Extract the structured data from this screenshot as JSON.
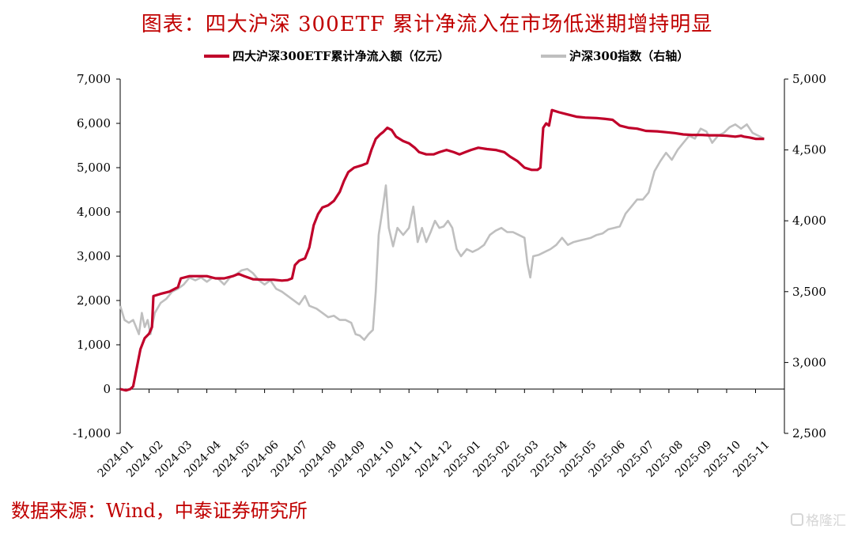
{
  "title": "图表：四大沪深 300ETF 累计净流入在市场低迷期增持明显",
  "source": "数据来源：Wind，中泰证券研究所",
  "watermark": "格隆汇",
  "chart_data": {
    "type": "line",
    "x": [
      "2024-01",
      "2024-02",
      "2024-03",
      "2024-04",
      "2024-05",
      "2024-06",
      "2024-07",
      "2024-08",
      "2024-09",
      "2024-10",
      "2024-11",
      "2024-12",
      "2025-01",
      "2025-02",
      "2025-03",
      "2025-04",
      "2025-05",
      "2025-06",
      "2025-07",
      "2025-08",
      "2025-09",
      "2025-10",
      "2025-11"
    ],
    "y_left": {
      "min": -1000,
      "max": 7000,
      "step": 1000,
      "ticks": [
        "-1,000",
        "0",
        "1,000",
        "2,000",
        "3,000",
        "4,000",
        "5,000",
        "6,000",
        "7,000"
      ]
    },
    "y_right": {
      "min": 2500,
      "max": 5000,
      "step": 500,
      "ticks": [
        "2,500",
        "3,000",
        "3,500",
        "4,000",
        "4,500",
        "5,000"
      ]
    },
    "legend_position": "top",
    "grid": false,
    "series": [
      {
        "name": "四大沪深300ETF累计净流入额（亿元）",
        "axis": "left",
        "color": "#c0002a",
        "points": [
          [
            0,
            0
          ],
          [
            0.2,
            -30
          ],
          [
            0.35,
            0
          ],
          [
            0.45,
            60
          ],
          [
            0.55,
            400
          ],
          [
            0.7,
            900
          ],
          [
            0.85,
            1150
          ],
          [
            1.0,
            1250
          ],
          [
            1.1,
            1400
          ],
          [
            1.15,
            2100
          ],
          [
            1.4,
            2150
          ],
          [
            1.7,
            2200
          ],
          [
            2.0,
            2300
          ],
          [
            2.1,
            2500
          ],
          [
            2.4,
            2550
          ],
          [
            2.7,
            2550
          ],
          [
            3.0,
            2550
          ],
          [
            3.3,
            2500
          ],
          [
            3.6,
            2500
          ],
          [
            3.9,
            2550
          ],
          [
            4.1,
            2600
          ],
          [
            4.3,
            2550
          ],
          [
            4.6,
            2480
          ],
          [
            5.0,
            2470
          ],
          [
            5.3,
            2470
          ],
          [
            5.6,
            2450
          ],
          [
            5.8,
            2460
          ],
          [
            5.95,
            2500
          ],
          [
            6.05,
            2800
          ],
          [
            6.2,
            2900
          ],
          [
            6.4,
            2950
          ],
          [
            6.55,
            3200
          ],
          [
            6.7,
            3700
          ],
          [
            6.85,
            3950
          ],
          [
            7.0,
            4100
          ],
          [
            7.2,
            4150
          ],
          [
            7.4,
            4250
          ],
          [
            7.6,
            4450
          ],
          [
            7.75,
            4700
          ],
          [
            7.9,
            4900
          ],
          [
            8.1,
            5000
          ],
          [
            8.35,
            5050
          ],
          [
            8.55,
            5100
          ],
          [
            8.7,
            5400
          ],
          [
            8.85,
            5650
          ],
          [
            9.0,
            5750
          ],
          [
            9.1,
            5800
          ],
          [
            9.25,
            5900
          ],
          [
            9.4,
            5850
          ],
          [
            9.55,
            5700
          ],
          [
            9.8,
            5600
          ],
          [
            10.0,
            5550
          ],
          [
            10.2,
            5450
          ],
          [
            10.35,
            5350
          ],
          [
            10.6,
            5300
          ],
          [
            10.85,
            5300
          ],
          [
            11.05,
            5350
          ],
          [
            11.3,
            5400
          ],
          [
            11.55,
            5350
          ],
          [
            11.75,
            5300
          ],
          [
            11.95,
            5350
          ],
          [
            12.15,
            5400
          ],
          [
            12.4,
            5450
          ],
          [
            12.7,
            5420
          ],
          [
            13.0,
            5400
          ],
          [
            13.3,
            5350
          ],
          [
            13.5,
            5250
          ],
          [
            13.75,
            5150
          ],
          [
            14.0,
            5000
          ],
          [
            14.25,
            4950
          ],
          [
            14.45,
            4950
          ],
          [
            14.55,
            5000
          ],
          [
            14.65,
            5900
          ],
          [
            14.75,
            6000
          ],
          [
            14.85,
            5950
          ],
          [
            14.95,
            6300
          ],
          [
            15.2,
            6250
          ],
          [
            15.5,
            6200
          ],
          [
            15.8,
            6150
          ],
          [
            16.1,
            6130
          ],
          [
            16.5,
            6120
          ],
          [
            16.8,
            6100
          ],
          [
            17.05,
            6080
          ],
          [
            17.3,
            5950
          ],
          [
            17.6,
            5900
          ],
          [
            17.9,
            5880
          ],
          [
            18.2,
            5830
          ],
          [
            18.6,
            5820
          ],
          [
            18.9,
            5800
          ],
          [
            19.2,
            5780
          ],
          [
            19.5,
            5750
          ],
          [
            19.8,
            5740
          ],
          [
            20.1,
            5740
          ],
          [
            20.4,
            5730
          ],
          [
            20.7,
            5730
          ],
          [
            21.0,
            5720
          ],
          [
            21.3,
            5700
          ],
          [
            21.5,
            5720
          ],
          [
            21.6,
            5700
          ],
          [
            21.8,
            5680
          ],
          [
            22.0,
            5650
          ],
          [
            22.3,
            5650
          ]
        ]
      },
      {
        "name": "沪深300指数（右轴）",
        "axis": "right",
        "color": "#bfbfbf",
        "points": [
          [
            0,
            3400
          ],
          [
            0.15,
            3300
          ],
          [
            0.3,
            3280
          ],
          [
            0.45,
            3300
          ],
          [
            0.55,
            3250
          ],
          [
            0.65,
            3200
          ],
          [
            0.75,
            3350
          ],
          [
            0.85,
            3250
          ],
          [
            0.95,
            3300
          ],
          [
            1.05,
            3200
          ],
          [
            1.2,
            3350
          ],
          [
            1.4,
            3420
          ],
          [
            1.6,
            3450
          ],
          [
            1.8,
            3500
          ],
          [
            2.0,
            3520
          ],
          [
            2.2,
            3550
          ],
          [
            2.4,
            3600
          ],
          [
            2.6,
            3580
          ],
          [
            2.8,
            3600
          ],
          [
            3.0,
            3570
          ],
          [
            3.2,
            3600
          ],
          [
            3.4,
            3590
          ],
          [
            3.6,
            3550
          ],
          [
            3.8,
            3600
          ],
          [
            4.0,
            3620
          ],
          [
            4.2,
            3650
          ],
          [
            4.4,
            3660
          ],
          [
            4.6,
            3630
          ],
          [
            4.8,
            3580
          ],
          [
            5.0,
            3550
          ],
          [
            5.2,
            3580
          ],
          [
            5.4,
            3520
          ],
          [
            5.6,
            3500
          ],
          [
            5.8,
            3470
          ],
          [
            6.0,
            3440
          ],
          [
            6.2,
            3410
          ],
          [
            6.4,
            3470
          ],
          [
            6.55,
            3400
          ],
          [
            6.8,
            3380
          ],
          [
            7.0,
            3350
          ],
          [
            7.2,
            3320
          ],
          [
            7.4,
            3330
          ],
          [
            7.6,
            3300
          ],
          [
            7.8,
            3300
          ],
          [
            8.0,
            3280
          ],
          [
            8.15,
            3200
          ],
          [
            8.3,
            3190
          ],
          [
            8.45,
            3160
          ],
          [
            8.6,
            3200
          ],
          [
            8.75,
            3230
          ],
          [
            8.85,
            3500
          ],
          [
            8.95,
            3900
          ],
          [
            9.1,
            4100
          ],
          [
            9.2,
            4250
          ],
          [
            9.3,
            3950
          ],
          [
            9.45,
            3820
          ],
          [
            9.6,
            3950
          ],
          [
            9.8,
            3900
          ],
          [
            10.0,
            3950
          ],
          [
            10.15,
            4100
          ],
          [
            10.3,
            3850
          ],
          [
            10.45,
            3950
          ],
          [
            10.6,
            3850
          ],
          [
            10.75,
            3920
          ],
          [
            10.9,
            4000
          ],
          [
            11.05,
            3950
          ],
          [
            11.2,
            3960
          ],
          [
            11.35,
            4000
          ],
          [
            11.5,
            3950
          ],
          [
            11.65,
            3800
          ],
          [
            11.8,
            3750
          ],
          [
            12.0,
            3800
          ],
          [
            12.2,
            3780
          ],
          [
            12.4,
            3800
          ],
          [
            12.6,
            3830
          ],
          [
            12.8,
            3900
          ],
          [
            13.0,
            3930
          ],
          [
            13.2,
            3950
          ],
          [
            13.4,
            3920
          ],
          [
            13.6,
            3920
          ],
          [
            13.8,
            3900
          ],
          [
            14.0,
            3880
          ],
          [
            14.1,
            3700
          ],
          [
            14.2,
            3600
          ],
          [
            14.3,
            3750
          ],
          [
            14.5,
            3760
          ],
          [
            14.7,
            3780
          ],
          [
            14.9,
            3800
          ],
          [
            15.1,
            3830
          ],
          [
            15.3,
            3880
          ],
          [
            15.5,
            3830
          ],
          [
            15.7,
            3850
          ],
          [
            15.9,
            3860
          ],
          [
            16.1,
            3870
          ],
          [
            16.3,
            3880
          ],
          [
            16.5,
            3900
          ],
          [
            16.7,
            3910
          ],
          [
            16.9,
            3940
          ],
          [
            17.1,
            3950
          ],
          [
            17.3,
            3960
          ],
          [
            17.5,
            4050
          ],
          [
            17.7,
            4100
          ],
          [
            17.9,
            4150
          ],
          [
            18.1,
            4150
          ],
          [
            18.3,
            4200
          ],
          [
            18.5,
            4350
          ],
          [
            18.7,
            4420
          ],
          [
            18.9,
            4480
          ],
          [
            19.1,
            4430
          ],
          [
            19.3,
            4500
          ],
          [
            19.5,
            4550
          ],
          [
            19.7,
            4600
          ],
          [
            19.9,
            4580
          ],
          [
            20.1,
            4650
          ],
          [
            20.3,
            4630
          ],
          [
            20.5,
            4550
          ],
          [
            20.7,
            4600
          ],
          [
            20.9,
            4620
          ],
          [
            21.1,
            4660
          ],
          [
            21.3,
            4680
          ],
          [
            21.5,
            4650
          ],
          [
            21.7,
            4680
          ],
          [
            21.9,
            4620
          ],
          [
            22.1,
            4600
          ],
          [
            22.3,
            4580
          ]
        ]
      }
    ]
  }
}
